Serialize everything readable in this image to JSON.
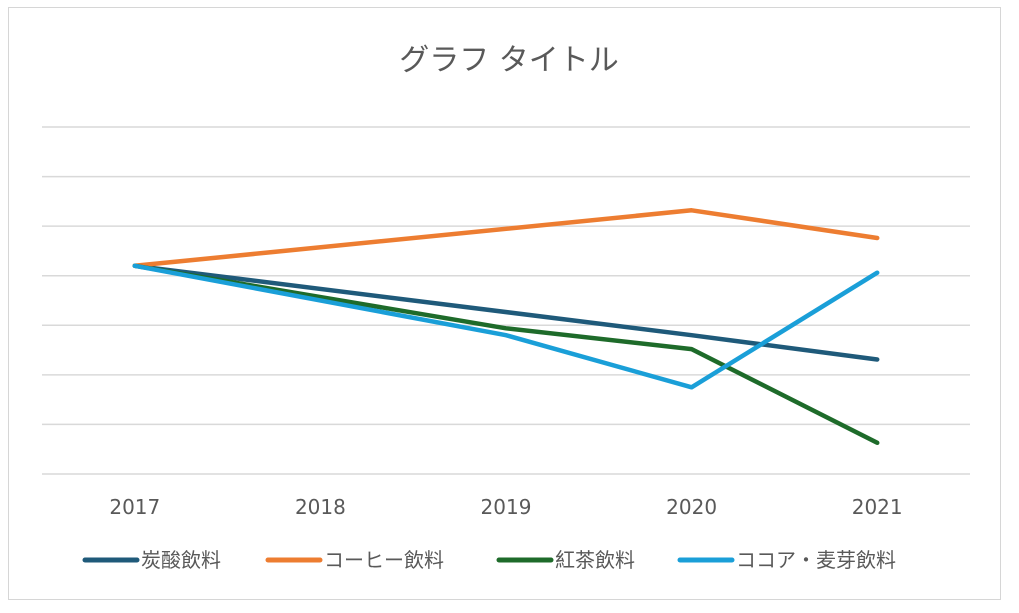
{
  "chart_data": {
    "type": "line",
    "title": "グラフ タイトル",
    "xlabel": "",
    "ylabel": "",
    "categories": [
      "2017",
      "2018",
      "2019",
      "2020",
      "2021"
    ],
    "ylim": [
      0,
      5
    ],
    "grid": true,
    "legend_position": "bottom",
    "series": [
      {
        "name": "炭酸飲料",
        "color": "#1f5a7a",
        "values": [
          3.0,
          null,
          null,
          2.0,
          1.65
        ]
      },
      {
        "name": "コーヒー飲料",
        "color": "#ed7d31",
        "values": [
          3.0,
          null,
          null,
          3.8,
          3.4
        ]
      },
      {
        "name": "紅茶飲料",
        "color": "#1e6b2a",
        "values": [
          3.0,
          null,
          2.1,
          1.8,
          0.45
        ]
      },
      {
        "name": "ココア・麦芽飲料",
        "color": "#1a9fd8",
        "values": [
          3.0,
          null,
          2.0,
          1.25,
          2.9
        ]
      }
    ]
  }
}
